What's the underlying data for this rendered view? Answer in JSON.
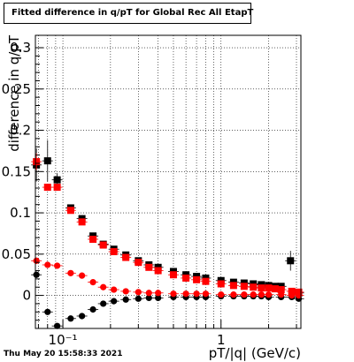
{
  "title": "Fitted difference in q/pT for Global Rec All EtapT",
  "timestamp": "Thu May 20 15:58:33 2021",
  "chart_data": {
    "type": "scatter",
    "title": "Fitted difference in q/pT for Global Rec All EtapT",
    "xlabel": "pT/|q| (GeV/c)",
    "ylabel": "difference in q/pT",
    "x_scale": "log",
    "xlim": [
      0.067,
      3.2
    ],
    "ylim": [
      -0.04,
      0.315
    ],
    "grid": true,
    "y_ticks": [
      {
        "value": 0,
        "label": "0"
      },
      {
        "value": 0.05,
        "label": "0.05"
      },
      {
        "value": 0.1,
        "label": "0.1"
      },
      {
        "value": 0.15,
        "label": "0.15"
      },
      {
        "value": 0.2,
        "label": "0.2"
      },
      {
        "value": 0.25,
        "label": "0.25"
      },
      {
        "value": 0.3,
        "label": "0.3"
      }
    ],
    "x_ticks": [
      {
        "value": 0.1,
        "label": "10⁻¹"
      },
      {
        "value": 1,
        "label": "1"
      }
    ],
    "series": [
      {
        "marker": "square",
        "color": "#000000",
        "x": [
          0.068,
          0.08,
          0.092,
          0.112,
          0.132,
          0.155,
          0.18,
          0.21,
          0.25,
          0.3,
          0.35,
          0.4,
          0.5,
          0.6,
          0.7,
          0.8,
          1.0,
          1.2,
          1.4,
          1.6,
          1.8,
          2.0,
          2.2,
          2.4,
          2.75,
          3.1
        ],
        "y": [
          0.158,
          0.163,
          0.14,
          0.106,
          0.093,
          0.072,
          0.062,
          0.056,
          0.049,
          0.042,
          0.037,
          0.034,
          0.029,
          0.025,
          0.023,
          0.021,
          0.018,
          0.016,
          0.015,
          0.014,
          0.013,
          0.012,
          0.011,
          0.011,
          0.042,
          0.003
        ],
        "yerr": [
          0.02,
          0.025,
          0.008,
          0.004,
          0.003,
          0.002,
          0.002,
          0.001,
          0.001,
          0.001,
          0.001,
          0.001,
          0.001,
          0.001,
          0.001,
          0.001,
          0.001,
          0.001,
          0.001,
          0.001,
          0.001,
          0.001,
          0.002,
          0.002,
          0.012,
          0.003
        ]
      },
      {
        "marker": "square",
        "color": "#ff0000",
        "x": [
          0.068,
          0.08,
          0.092,
          0.112,
          0.132,
          0.155,
          0.18,
          0.21,
          0.25,
          0.3,
          0.35,
          0.4,
          0.5,
          0.6,
          0.7,
          0.8,
          1.0,
          1.2,
          1.4,
          1.6,
          1.8,
          2.0,
          2.2,
          2.4,
          2.8,
          3.1
        ],
        "y": [
          0.162,
          0.131,
          0.131,
          0.103,
          0.089,
          0.068,
          0.061,
          0.053,
          0.046,
          0.04,
          0.034,
          0.03,
          0.025,
          0.021,
          0.019,
          0.017,
          0.014,
          0.012,
          0.011,
          0.01,
          0.009,
          0.009,
          0.008,
          0.007,
          0.005,
          0.004
        ],
        "yerr": [
          0.01,
          0.004,
          0.003,
          0.003,
          0.002,
          0.002,
          0.001,
          0.001,
          0.001,
          0.001,
          0.001,
          0.001,
          0.001,
          0.001,
          0.001,
          0.001,
          0.001,
          0.001,
          0.001,
          0.001,
          0.001,
          0.001,
          0.001,
          0.001,
          0.001,
          0.001
        ]
      },
      {
        "marker": "circle",
        "color": "#000000",
        "x": [
          0.068,
          0.08,
          0.092,
          0.112,
          0.132,
          0.155,
          0.18,
          0.21,
          0.25,
          0.3,
          0.35,
          0.4,
          0.5,
          0.6,
          0.7,
          0.8,
          1.0,
          1.2,
          1.4,
          1.6,
          1.8,
          2.0,
          2.4,
          2.8,
          3.1
        ],
        "y": [
          0.025,
          -0.02,
          -0.037,
          -0.028,
          -0.025,
          -0.017,
          -0.01,
          -0.007,
          -0.005,
          -0.004,
          -0.003,
          -0.003,
          -0.002,
          -0.002,
          -0.002,
          -0.002,
          -0.001,
          -0.001,
          -0.001,
          -0.001,
          -0.001,
          -0.002,
          -0.002,
          -0.002,
          -0.004
        ],
        "yerr": [
          0.004,
          0.003,
          0.003,
          0.003,
          0.002,
          0.001,
          0.001,
          0.001,
          0.001,
          0.001,
          0.001,
          0.001,
          0.001,
          0.001,
          0.001,
          0.001,
          0.001,
          0.001,
          0.001,
          0.001,
          0.001,
          0.001,
          0.001,
          0.001,
          0.002
        ]
      },
      {
        "marker": "circle",
        "color": "#ff0000",
        "x": [
          0.068,
          0.08,
          0.092,
          0.112,
          0.132,
          0.155,
          0.18,
          0.21,
          0.25,
          0.3,
          0.35,
          0.4,
          0.5,
          0.6,
          0.7,
          0.8,
          1.0,
          1.2,
          1.4,
          1.6,
          1.8,
          2.0,
          2.4,
          2.8,
          3.1
        ],
        "y": [
          0.042,
          0.037,
          0.036,
          0.027,
          0.024,
          0.016,
          0.01,
          0.007,
          0.005,
          0.004,
          0.003,
          0.003,
          0.002,
          0.002,
          0.002,
          0.002,
          0.001,
          0.001,
          0.001,
          0.001,
          0.001,
          0.001,
          0.001,
          0.0,
          0.0
        ],
        "yerr": [
          0.004,
          0.003,
          0.002,
          0.002,
          0.002,
          0.001,
          0.001,
          0.001,
          0.001,
          0.001,
          0.001,
          0.001,
          0.001,
          0.001,
          0.001,
          0.001,
          0.001,
          0.001,
          0.001,
          0.001,
          0.001,
          0.001,
          0.001,
          0.001,
          0.001
        ]
      }
    ]
  }
}
